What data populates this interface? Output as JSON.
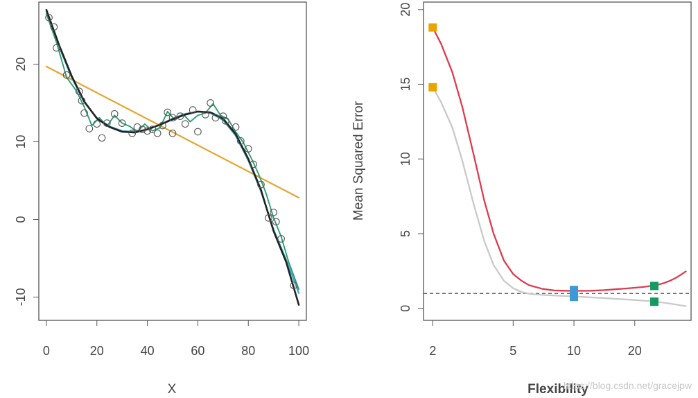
{
  "chart_data": [
    {
      "type": "scatter",
      "title": "",
      "xlabel": "X",
      "ylabel": "",
      "xlim": [
        -3,
        103
      ],
      "ylim": [
        -13,
        28
      ],
      "xticks": [
        0,
        20,
        40,
        60,
        80,
        100
      ],
      "yticks": [
        -10,
        0,
        10,
        20
      ],
      "colors": {
        "points": "#555555",
        "true": "#222222",
        "linear": "#e8a530",
        "spline_smooth": "#3aa7c9",
        "spline_rough": "#2d9e73",
        "frame": "#555555"
      },
      "points": [
        [
          1,
          26
        ],
        [
          3,
          24.8
        ],
        [
          4,
          22.1
        ],
        [
          8,
          18.6
        ],
        [
          13,
          16.5
        ],
        [
          14,
          15.3
        ],
        [
          15,
          13.7
        ],
        [
          17,
          11.7
        ],
        [
          20,
          12.3
        ],
        [
          22,
          10.5
        ],
        [
          24,
          12.4
        ],
        [
          27,
          13.6
        ],
        [
          30,
          12.4
        ],
        [
          34,
          11.1
        ],
        [
          36,
          11.9
        ],
        [
          38,
          11.6
        ],
        [
          40,
          11.4
        ],
        [
          42,
          11.6
        ],
        [
          44,
          11.1
        ],
        [
          46,
          12.1
        ],
        [
          48,
          13.8
        ],
        [
          50,
          13.1
        ],
        [
          50,
          11.1
        ],
        [
          53,
          13.3
        ],
        [
          55,
          12.3
        ],
        [
          58,
          14.1
        ],
        [
          60,
          11.3
        ],
        [
          63,
          13.5
        ],
        [
          65,
          15
        ],
        [
          67,
          13.1
        ],
        [
          70,
          13.3
        ],
        [
          71,
          12.7
        ],
        [
          75,
          11.9
        ],
        [
          77,
          10.1
        ],
        [
          80,
          9.1
        ],
        [
          82,
          7.1
        ],
        [
          85,
          4.5
        ],
        [
          88,
          0.2
        ],
        [
          90,
          0.9
        ],
        [
          91,
          -0.3
        ],
        [
          93,
          -2.5
        ],
        [
          98,
          -8.5
        ]
      ],
      "series": [
        {
          "name": "true function",
          "x": [
            0,
            5,
            10,
            15,
            20,
            25,
            30,
            35,
            40,
            45,
            50,
            55,
            60,
            65,
            70,
            75,
            80,
            85,
            90,
            95,
            100
          ],
          "y": [
            27,
            22.5,
            18.5,
            15.2,
            13,
            11.9,
            11.3,
            11.2,
            11.6,
            12.2,
            12.9,
            13.5,
            13.9,
            13.8,
            13,
            11,
            7.8,
            3.8,
            -1.5,
            -5.5,
            -11
          ]
        },
        {
          "name": "linear regression",
          "x": [
            0,
            100
          ],
          "y": [
            19.7,
            2.8
          ]
        },
        {
          "name": "smoothing spline (moderate)",
          "x": [
            0,
            5,
            10,
            15,
            20,
            25,
            30,
            35,
            40,
            45,
            50,
            55,
            60,
            65,
            70,
            75,
            80,
            85,
            90,
            95,
            100
          ],
          "y": [
            26.8,
            22.3,
            18.3,
            15.1,
            13.1,
            12,
            11.4,
            11.3,
            11.6,
            12.2,
            13,
            13.6,
            13.9,
            13.7,
            12.8,
            10.8,
            7.6,
            3.6,
            -1.3,
            -5.2,
            -9.5
          ]
        },
        {
          "name": "smoothing spline (flexible)",
          "x": [
            0,
            4,
            8,
            12,
            15,
            18,
            21,
            24,
            27,
            30,
            33,
            36,
            39,
            42,
            45,
            48,
            51,
            54,
            57,
            60,
            63,
            66,
            69,
            72,
            75,
            78,
            81,
            84,
            87,
            90,
            93,
            96,
            100
          ],
          "y": [
            26.5,
            22.8,
            18.3,
            16.5,
            14.5,
            12.1,
            13.1,
            12,
            13.4,
            12.4,
            12,
            11.3,
            12.3,
            11.4,
            11.8,
            13.9,
            12.8,
            13.6,
            12.6,
            13.4,
            13.7,
            14.9,
            13.4,
            12.9,
            11.3,
            9.9,
            8,
            5.9,
            3.4,
            0.2,
            -2.2,
            -5.5,
            -9
          ]
        }
      ]
    },
    {
      "type": "line",
      "title": "",
      "xlabel": "Flexibility",
      "ylabel": "Mean Squared Error",
      "xscale": "log",
      "xlim": [
        1.8,
        38
      ],
      "ylim": [
        -0.8,
        20.5
      ],
      "xticks": [
        2,
        5,
        10,
        20
      ],
      "yticks": [
        0,
        5,
        10,
        15,
        20
      ],
      "colors": {
        "test": "#e03a4f",
        "train": "#c9c9c9",
        "baseline": "#333333",
        "linear_marker": "#e8a500",
        "moderate_marker": "#3d9ad6",
        "flexible_marker": "#159a63",
        "frame": "#555555"
      },
      "baseline": 1,
      "series": [
        {
          "name": "test MSE",
          "x": [
            2,
            2.2,
            2.5,
            2.8,
            3.2,
            3.6,
            4,
            4.5,
            5,
            5.5,
            6,
            7,
            8,
            9,
            10,
            12,
            14,
            16,
            18,
            20,
            22,
            24,
            26,
            28,
            30,
            32,
            34,
            36
          ],
          "y": [
            18.8,
            17.7,
            15.8,
            13.5,
            10.2,
            7.2,
            5,
            3.2,
            2.3,
            1.85,
            1.55,
            1.3,
            1.2,
            1.18,
            1.17,
            1.18,
            1.22,
            1.28,
            1.33,
            1.38,
            1.43,
            1.5,
            1.58,
            1.7,
            1.86,
            2.05,
            2.27,
            2.5
          ]
        },
        {
          "name": "training MSE",
          "x": [
            2,
            2.2,
            2.5,
            2.8,
            3.2,
            3.6,
            4,
            4.5,
            5,
            5.5,
            6,
            7,
            8,
            9,
            10,
            12,
            14,
            16,
            18,
            20,
            22,
            24,
            26,
            28,
            30,
            32,
            34,
            36
          ],
          "y": [
            14.8,
            13.8,
            12.1,
            9.9,
            6.9,
            4.5,
            2.9,
            1.85,
            1.35,
            1.1,
            0.98,
            0.9,
            0.86,
            0.83,
            0.8,
            0.74,
            0.69,
            0.64,
            0.6,
            0.56,
            0.52,
            0.48,
            0.43,
            0.38,
            0.32,
            0.26,
            0.2,
            0.14
          ]
        }
      ],
      "markers": [
        {
          "name": "linear test",
          "x": 2,
          "y": 18.8,
          "color": "#e8a500"
        },
        {
          "name": "linear train",
          "x": 2,
          "y": 14.8,
          "color": "#e8a500"
        },
        {
          "name": "moderate test/train",
          "x": 10,
          "y": 1.0,
          "color": "#3d9ad6",
          "tall": true
        },
        {
          "name": "flexible test",
          "x": 25,
          "y": 1.5,
          "color": "#159a63"
        },
        {
          "name": "flexible train",
          "x": 25,
          "y": 0.45,
          "color": "#159a63"
        }
      ],
      "watermark": "https://blog.csdn.net/gracejpw"
    }
  ]
}
